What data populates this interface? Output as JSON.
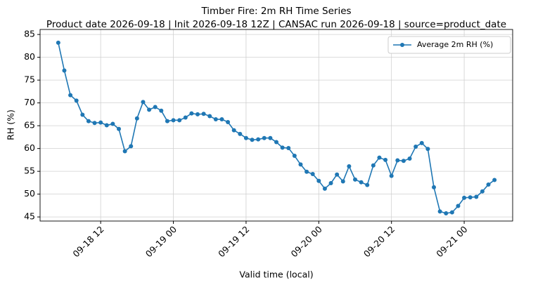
{
  "chart_data": {
    "type": "line",
    "title": "Timber Fire: 2m RH Time Series",
    "subtitle": "Product date 2026-09-18 | Init 2026-09-18 12Z | CANSAC run 2026-09-18 | source=product_date",
    "xlabel": "Valid time (local)",
    "ylabel": "RH (%)",
    "x": [
      "09-18 05",
      "09-18 06",
      "09-18 07",
      "09-18 08",
      "09-18 09",
      "09-18 10",
      "09-18 11",
      "09-18 12",
      "09-18 13",
      "09-18 14",
      "09-18 15",
      "09-18 16",
      "09-18 17",
      "09-18 18",
      "09-18 19",
      "09-18 20",
      "09-18 21",
      "09-18 22",
      "09-18 23",
      "09-19 00",
      "09-19 01",
      "09-19 02",
      "09-19 03",
      "09-19 04",
      "09-19 05",
      "09-19 06",
      "09-19 07",
      "09-19 08",
      "09-19 09",
      "09-19 10",
      "09-19 11",
      "09-19 12",
      "09-19 13",
      "09-19 14",
      "09-19 15",
      "09-19 16",
      "09-19 17",
      "09-19 18",
      "09-19 19",
      "09-19 20",
      "09-19 21",
      "09-19 22",
      "09-19 23",
      "09-20 00",
      "09-20 01",
      "09-20 02",
      "09-20 03",
      "09-20 04",
      "09-20 05",
      "09-20 06",
      "09-20 07",
      "09-20 08",
      "09-20 09",
      "09-20 10",
      "09-20 11",
      "09-20 12",
      "09-20 13",
      "09-20 14",
      "09-20 15",
      "09-20 16",
      "09-20 17",
      "09-20 18",
      "09-20 19",
      "09-20 20",
      "09-20 21",
      "09-20 22",
      "09-20 23",
      "09-21 00",
      "09-21 01",
      "09-21 02",
      "09-21 03",
      "09-21 04",
      "09-21 05"
    ],
    "series": [
      {
        "name": "Average 2m RH (%)",
        "color": "#1f77b4",
        "values": [
          83.2,
          77.1,
          71.7,
          70.5,
          67.4,
          66.0,
          65.6,
          65.7,
          65.1,
          65.4,
          64.3,
          59.4,
          60.5,
          66.6,
          70.2,
          68.5,
          69.1,
          68.3,
          66.0,
          66.2,
          66.2,
          66.8,
          67.7,
          67.5,
          67.6,
          67.1,
          66.4,
          66.4,
          65.8,
          64.0,
          63.2,
          62.3,
          61.9,
          62.0,
          62.3,
          62.3,
          61.4,
          60.2,
          60.1,
          58.4,
          56.5,
          54.9,
          54.4,
          52.9,
          51.2,
          52.4,
          54.3,
          52.8,
          56.1,
          53.2,
          52.6,
          52.0,
          56.3,
          58.0,
          57.5,
          54.0,
          57.4,
          57.3,
          57.8,
          60.4,
          61.2,
          59.9,
          51.5,
          46.2,
          45.8,
          46.0,
          47.4,
          49.2,
          49.3,
          49.4,
          50.6,
          52.1,
          53.1
        ]
      }
    ],
    "xlim": [
      "09-18 02",
      "09-21 08"
    ],
    "xticks": [
      "09-18 12",
      "09-19 00",
      "09-19 12",
      "09-20 00",
      "09-20 12",
      "09-21 00"
    ],
    "ylim": [
      44.1,
      86.1
    ],
    "yticks": [
      45,
      50,
      55,
      60,
      65,
      70,
      75,
      80,
      85
    ],
    "grid": true,
    "legend": "upper right"
  }
}
